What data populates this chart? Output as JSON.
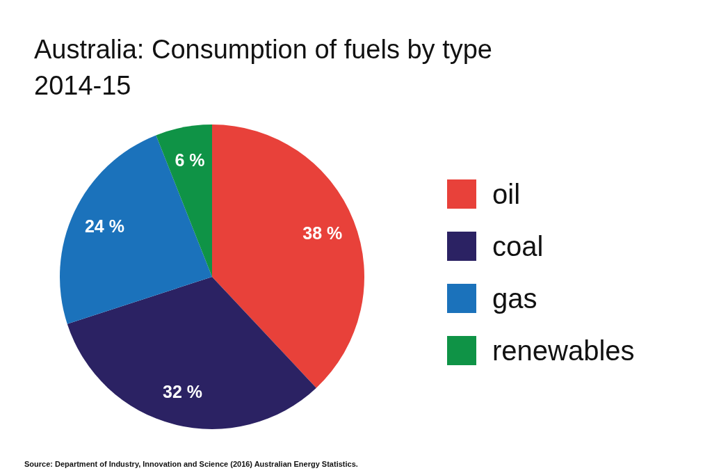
{
  "chart_data": {
    "type": "pie",
    "title": "Australia: Consumption of fuels by type 2014-15",
    "categories": [
      "oil",
      "coal",
      "gas",
      "renewables"
    ],
    "values": [
      38,
      32,
      24,
      6
    ],
    "colors": [
      "#e8413a",
      "#2b2263",
      "#1b72bb",
      "#0f9346"
    ],
    "value_labels": [
      "38 %",
      "32 %",
      "24 %",
      "6 %"
    ],
    "legend": "right",
    "annotations": [
      "Source: Department of Industry, Innovation and Science (2016) Australian Energy Statistics."
    ]
  }
}
